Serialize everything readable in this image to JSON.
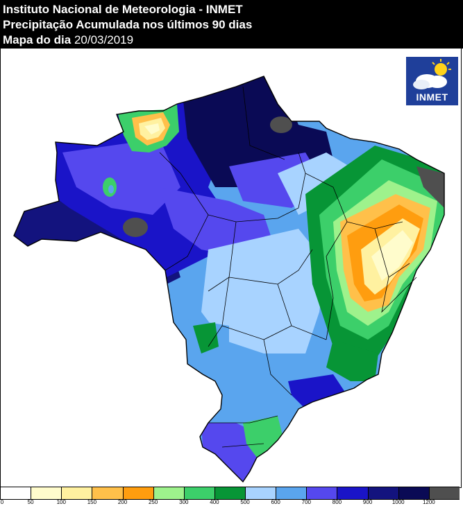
{
  "header": {
    "line1": "Instituto Nacional de Meteorologia - INMET",
    "line2": "Precipitação Acumulada nos últimos 90 dias",
    "line3_prefix": "Mapa do dia",
    "date": "20/03/2019"
  },
  "logo": {
    "text": "INMET",
    "icon": "cloud-sun-icon"
  },
  "legend": {
    "unit_values": [
      "0",
      "50",
      "100",
      "150",
      "200",
      "250",
      "300",
      "400",
      "500",
      "600",
      "700",
      "800",
      "900",
      "1000",
      "1200"
    ],
    "colors": [
      "#ffffff",
      "#fffccc",
      "#fff1a0",
      "#ffc04a",
      "#ff9d0f",
      "#9ef28c",
      "#3ccf6a",
      "#079536",
      "#a8d3ff",
      "#5aa5ee",
      "#5548ee",
      "#1a14c8",
      "#13137e",
      "#0a0a55",
      "#4f4f4f"
    ]
  }
}
